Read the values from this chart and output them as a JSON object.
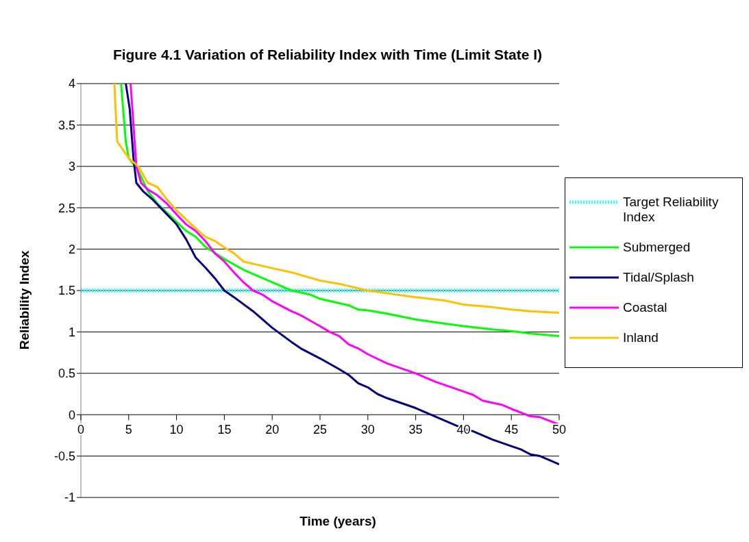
{
  "chart_data": {
    "type": "line",
    "title": "Figure 4.1  Variation of Reliability Index with Time (Limit State I)",
    "xlabel": "Time (years)",
    "ylabel": "Reliability Index",
    "xlim": [
      0,
      50
    ],
    "xticks": [
      0,
      5,
      10,
      15,
      20,
      25,
      30,
      35,
      40,
      45,
      50
    ],
    "ylim": [
      -1,
      4
    ],
    "yticks": [
      -1,
      -0.5,
      0,
      0.5,
      1,
      1.5,
      2,
      2.5,
      3,
      3.5,
      4
    ],
    "grid": "y",
    "legend": "right",
    "marker": "none",
    "series": [
      {
        "name": "Target Reliability Index",
        "color": "#33ffff",
        "line_style": "dotted",
        "x": [
          0,
          50
        ],
        "values": [
          1.5,
          1.5
        ]
      },
      {
        "name": "Submerged",
        "color": "#00ff00",
        "x": [
          4.2,
          4.7,
          5,
          5.5,
          6,
          7,
          8,
          10,
          11,
          12,
          13,
          15,
          17,
          18,
          20,
          22,
          24,
          25,
          28,
          29,
          30,
          32,
          35,
          38,
          40,
          43,
          45,
          47,
          50
        ],
        "values": [
          4,
          3.3,
          3.1,
          3.03,
          2.95,
          2.7,
          2.55,
          2.33,
          2.22,
          2.15,
          2.03,
          1.88,
          1.75,
          1.7,
          1.6,
          1.5,
          1.45,
          1.4,
          1.32,
          1.27,
          1.26,
          1.22,
          1.15,
          1.1,
          1.07,
          1.03,
          1.01,
          0.98,
          0.95
        ]
      },
      {
        "name": "Tidal/Splash",
        "color": "#000080",
        "x": [
          4.7,
          5.1,
          5.5,
          5.8,
          6.5,
          7.5,
          9,
          10,
          11,
          12,
          13,
          14,
          15,
          16,
          18,
          20,
          22,
          23,
          25,
          27,
          28,
          29,
          30,
          31,
          32,
          35,
          37,
          38,
          40,
          41,
          43,
          45,
          46,
          47,
          48,
          50
        ],
        "values": [
          4,
          3.7,
          3.1,
          2.8,
          2.7,
          2.6,
          2.42,
          2.3,
          2.12,
          1.9,
          1.78,
          1.65,
          1.5,
          1.42,
          1.25,
          1.05,
          0.88,
          0.8,
          0.68,
          0.55,
          0.48,
          0.38,
          0.33,
          0.25,
          0.2,
          0.08,
          -0.02,
          -0.07,
          -0.17,
          -0.2,
          -0.3,
          -0.38,
          -0.42,
          -0.48,
          -0.5,
          -0.6
        ]
      },
      {
        "name": "Coastal",
        "color": "#ff00ff",
        "x": [
          5.2,
          5.5,
          5.8,
          6.3,
          7,
          8,
          9,
          10,
          11,
          12,
          13,
          14,
          15,
          16,
          17,
          18,
          19,
          20,
          22,
          23,
          25,
          26,
          27,
          28,
          29,
          30,
          32,
          35,
          37,
          40,
          41,
          42,
          44,
          45,
          47,
          48,
          50
        ],
        "values": [
          4,
          3.5,
          3.0,
          2.8,
          2.72,
          2.65,
          2.55,
          2.42,
          2.3,
          2.22,
          2.1,
          1.95,
          1.85,
          1.72,
          1.6,
          1.5,
          1.45,
          1.37,
          1.25,
          1.2,
          1.07,
          1.0,
          0.95,
          0.85,
          0.8,
          0.73,
          0.62,
          0.5,
          0.4,
          0.28,
          0.24,
          0.17,
          0.12,
          0.07,
          -0.02,
          -0.03,
          -0.12
        ]
      },
      {
        "name": "Inland",
        "color": "#ffc000",
        "x": [
          3.5,
          3.8,
          5,
          6,
          7,
          8,
          9,
          10,
          12,
          13,
          14,
          15,
          16,
          17,
          20,
          22,
          25,
          27,
          30,
          33,
          35,
          38,
          40,
          43,
          45,
          47,
          50
        ],
        "values": [
          4,
          3.3,
          3.1,
          3.0,
          2.8,
          2.75,
          2.6,
          2.47,
          2.25,
          2.15,
          2.1,
          2.02,
          1.95,
          1.85,
          1.77,
          1.72,
          1.62,
          1.58,
          1.5,
          1.45,
          1.42,
          1.38,
          1.33,
          1.3,
          1.27,
          1.25,
          1.23
        ]
      }
    ]
  }
}
